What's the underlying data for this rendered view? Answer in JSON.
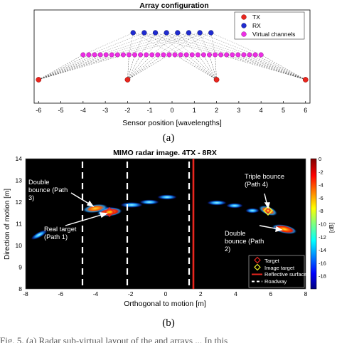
{
  "figure_a": {
    "title": "Array configuration",
    "xlabel": "Sensor position [wavelengths]",
    "x_ticks": [
      "-6",
      "-5",
      "-4",
      "-3",
      "-2",
      "-1",
      "0",
      "1",
      "2",
      "3",
      "4",
      "5",
      "6"
    ],
    "legend": [
      {
        "label": "TX",
        "color": "#e8261e",
        "marker": "circle"
      },
      {
        "label": "RX",
        "color": "#1f2bd1",
        "marker": "circle"
      },
      {
        "label": "Virtual channels",
        "color": "#ee2ee6",
        "marker": "circle"
      }
    ],
    "caption": "(a)"
  },
  "figure_b": {
    "title": "MIMO radar image. 4TX - 8RX",
    "xlabel": "Orthogonal to motion [m]",
    "ylabel": "Direction of motion [m]",
    "x_ticks": [
      "-8",
      "-6",
      "-4",
      "-2",
      "0",
      "2",
      "4",
      "6",
      "8"
    ],
    "y_ticks": [
      "8",
      "9",
      "10",
      "11",
      "12",
      "13",
      "14"
    ],
    "colorbar_label": "[dB]",
    "colorbar_ticks": [
      "0",
      "-2",
      "-4",
      "-6",
      "-8",
      "-10",
      "-12",
      "-14",
      "-16",
      "-18"
    ],
    "annotations": {
      "double_bounce_left": "Double bounce (Path 3)",
      "real_target": "Real target (Path 1)",
      "triple_bounce": "Triple bounce (Path 4)",
      "double_bounce_right": "Double bounce (Path 2)"
    },
    "legend": [
      {
        "label": "Target",
        "color": "#e8261e"
      },
      {
        "label": "Image target",
        "color": "#f0ee28"
      },
      {
        "label": "Reflective surface",
        "color": "#e8261e"
      },
      {
        "label": "Roadway",
        "color": "#ffffff"
      }
    ],
    "caption": "(b)"
  },
  "chart_data": [
    {
      "type": "scatter",
      "title": "Array configuration",
      "xlabel": "Sensor position [wavelengths]",
      "ylabel": "",
      "xlim": [
        -6.2,
        6.2
      ],
      "series": [
        {
          "name": "TX",
          "x": [
            -6,
            -2,
            2,
            6
          ]
        },
        {
          "name": "RX",
          "x": [
            -1.75,
            -1.25,
            -0.75,
            -0.25,
            0.25,
            0.75,
            1.25,
            1.75
          ]
        },
        {
          "name": "Virtual channels",
          "x_range": [
            -4,
            4
          ],
          "count": 32
        }
      ]
    },
    {
      "type": "heatmap",
      "title": "MIMO radar image. 4TX - 8RX",
      "xlabel": "Orthogonal to motion [m]",
      "ylabel": "Direction of motion [m]",
      "xlim": [
        -8,
        8
      ],
      "ylim": [
        8,
        14
      ],
      "colorbar_range_db": [
        -20,
        0
      ],
      "targets": [
        {
          "name": "Target",
          "x": -3.0,
          "y": 12.0
        },
        {
          "name": "Image target",
          "x": 6.0,
          "y": 12.1
        }
      ],
      "reflective_surface_x": 1.7,
      "roadway_x": [
        -4.5,
        -1.5,
        1.5
      ]
    }
  ],
  "bottom_text": "Fig. 5. (a) Radar sub-virtual layout of the and arrays ... In this"
}
